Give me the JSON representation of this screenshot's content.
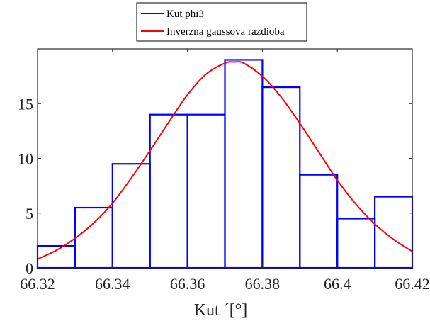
{
  "chart_data": {
    "type": "histogram",
    "xlabel": "Kut ´[°]",
    "ylabel": "",
    "xlim": [
      66.32,
      66.42
    ],
    "ylim": [
      0,
      20
    ],
    "x_ticks": [
      66.32,
      66.34,
      66.36,
      66.38,
      66.4,
      66.42
    ],
    "x_tick_labels": [
      "66.32",
      "66.34",
      "66.36",
      "66.38",
      "66.4",
      "66.42"
    ],
    "y_ticks": [
      0,
      5,
      10,
      15
    ],
    "y_tick_labels": [
      "0",
      "5",
      "10",
      "15"
    ],
    "grid": false,
    "legend_position": "top-center",
    "series": [
      {
        "name": "Kut phi3",
        "type": "histogram",
        "color": "#0000ff",
        "bin_edges": [
          66.32,
          66.33,
          66.34,
          66.35,
          66.36,
          66.37,
          66.38,
          66.39,
          66.4,
          66.41,
          66.42
        ],
        "values": [
          2,
          5.5,
          9.5,
          14,
          14,
          19,
          16.5,
          8.5,
          4.5,
          6.5
        ]
      },
      {
        "name": "Inverzna gaussova razdioba",
        "type": "line",
        "color": "#ff0000",
        "x": [
          66.32,
          66.325,
          66.33,
          66.335,
          66.34,
          66.345,
          66.35,
          66.355,
          66.36,
          66.365,
          66.37,
          66.3725,
          66.375,
          66.38,
          66.385,
          66.39,
          66.395,
          66.4,
          66.405,
          66.41,
          66.415,
          66.42
        ],
        "values": [
          0.8,
          1.6,
          2.7,
          4.1,
          5.9,
          8.2,
          10.7,
          13.3,
          15.8,
          17.7,
          18.7,
          18.8,
          18.7,
          17.5,
          15.6,
          13.2,
          10.6,
          8.0,
          5.8,
          4.0,
          2.6,
          1.5
        ]
      }
    ]
  }
}
